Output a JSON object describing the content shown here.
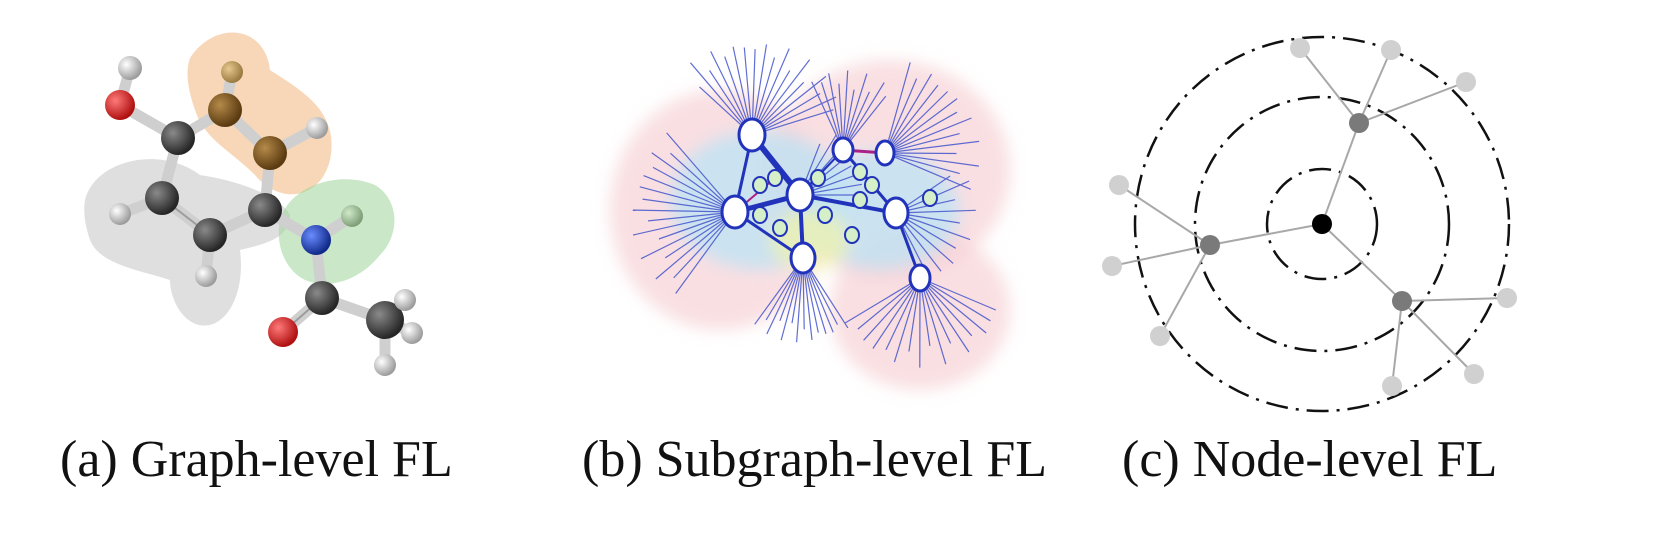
{
  "panels": [
    {
      "label": "(a)",
      "caption": "Graph-level FL",
      "illustration": "molecule-graph"
    },
    {
      "label": "(b)",
      "caption": "Subgraph-level FL",
      "illustration": "subgraph-network"
    },
    {
      "label": "(c)",
      "caption": "Node-level FL",
      "illustration": "ego-network-rings"
    }
  ],
  "colors": {
    "carbon": "#3a3a3a",
    "hydrogen": "#d8d8d8",
    "oxygen": "#d42a2a",
    "nitrogen": "#1f3f9f",
    "highlight_orange": "#f0b67c",
    "highlight_green": "#9ed59a",
    "highlight_grey": "#b8b8b8",
    "subgraph_edge": "#3344cc",
    "subgraph_node_fill": "#ffffff",
    "subgraph_small_node": "#cfeec6",
    "center_node": "#000000",
    "hop1_node": "#7a7a7a",
    "hop2_node": "#d0d0d0"
  }
}
